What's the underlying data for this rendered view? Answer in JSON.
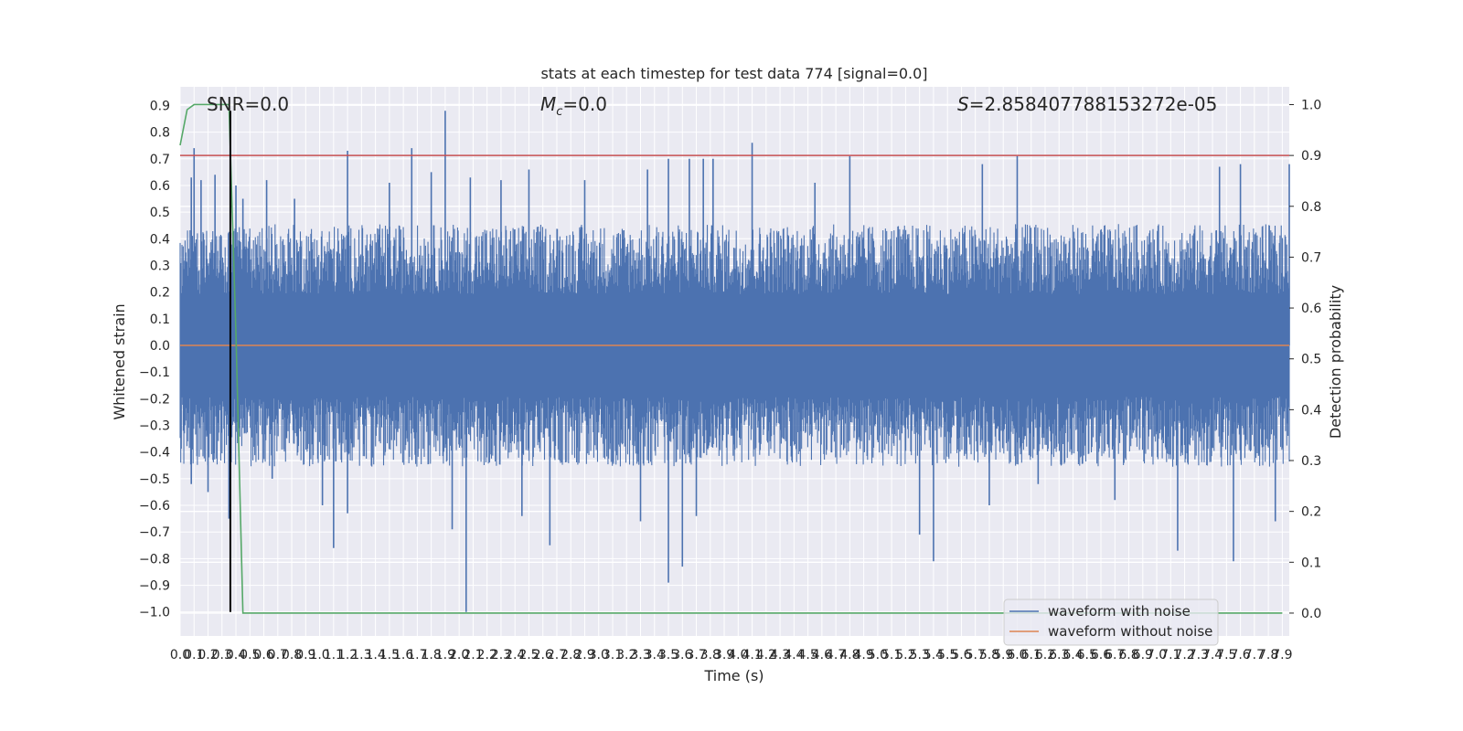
{
  "chart_data": {
    "type": "line",
    "title": "stats at each timestep for test data 774 [signal=0.0]",
    "xlabel": "Time (s)",
    "ylabel_left": "Whitened strain",
    "ylabel_right": "Detection probability",
    "xlim": [
      0.0,
      7.95
    ],
    "ylim_left": [
      -1.09,
      0.97
    ],
    "ylim_right": [
      -0.045,
      1.035
    ],
    "x_ticks": [
      "0.0",
      "0.1",
      "0.2",
      "0.3",
      "0.4",
      "0.5",
      "0.6",
      "0.7",
      "0.8",
      "0.9",
      "1.0",
      "1.1",
      "1.2",
      "1.3",
      "1.4",
      "1.5",
      "1.6",
      "1.7",
      "1.8",
      "1.9",
      "2.0",
      "2.1",
      "2.2",
      "2.3",
      "2.4",
      "2.5",
      "2.6",
      "2.7",
      "2.8",
      "2.9",
      "3.0",
      "3.1",
      "3.2",
      "3.3",
      "3.4",
      "3.5",
      "3.6",
      "3.7",
      "3.8",
      "3.9",
      "4.0",
      "4.1",
      "4.2",
      "4.3",
      "4.4",
      "4.5",
      "4.6",
      "4.7",
      "4.8",
      "4.9",
      "5.0",
      "5.1",
      "5.2",
      "5.3",
      "5.4",
      "5.5",
      "5.6",
      "5.7",
      "5.8",
      "5.9",
      "6.0",
      "6.1",
      "6.2",
      "6.3",
      "6.4",
      "6.5",
      "6.6",
      "6.7",
      "6.8",
      "6.9",
      "7.0",
      "7.1",
      "7.2",
      "7.3",
      "7.4",
      "7.5",
      "7.6",
      "7.7",
      "7.8",
      "7.9"
    ],
    "y_ticks_left": [
      "0.9",
      "0.8",
      "0.7",
      "0.6",
      "0.5",
      "0.4",
      "0.3",
      "0.2",
      "0.1",
      "0.0",
      "−0.1",
      "−0.2",
      "−0.3",
      "−0.4",
      "−0.5",
      "−0.6",
      "−0.7",
      "−0.8",
      "−0.9",
      "−1.0"
    ],
    "y_ticks_right": [
      "1.0",
      "0.9",
      "0.8",
      "0.7",
      "0.6",
      "0.5",
      "0.4",
      "0.3",
      "0.2",
      "0.1",
      "0.0"
    ],
    "annotations": {
      "snr": "SNR=0.0",
      "mc_symbol": "M",
      "mc_sub": "c",
      "mc_value": "=0.0",
      "s_symbol": "S",
      "s_value": "=2.858407788153272e-05"
    },
    "legend": {
      "placement": "lower right",
      "entries": [
        {
          "label": "waveform with noise",
          "color": "#4c72b0"
        },
        {
          "label": "waveform without noise",
          "color": "#dd8452"
        }
      ]
    },
    "series": [
      {
        "name": "waveform with noise",
        "axis": "left",
        "color": "#4c72b0",
        "style": "noise",
        "envelope_typical": 0.35,
        "spikes": [
          {
            "x": 0.08,
            "y": 0.63
          },
          {
            "x": 0.08,
            "y": -0.52
          },
          {
            "x": 0.1,
            "y": 0.74
          },
          {
            "x": 0.15,
            "y": 0.62
          },
          {
            "x": 0.2,
            "y": -0.55
          },
          {
            "x": 0.25,
            "y": 0.64
          },
          {
            "x": 0.35,
            "y": -0.65
          },
          {
            "x": 0.4,
            "y": 0.6
          },
          {
            "x": 0.45,
            "y": 0.55
          },
          {
            "x": 0.62,
            "y": 0.62
          },
          {
            "x": 0.66,
            "y": -0.5
          },
          {
            "x": 0.82,
            "y": 0.55
          },
          {
            "x": 1.02,
            "y": -0.6
          },
          {
            "x": 1.1,
            "y": -0.76
          },
          {
            "x": 1.2,
            "y": 0.73
          },
          {
            "x": 1.2,
            "y": -0.63
          },
          {
            "x": 1.5,
            "y": 0.61
          },
          {
            "x": 1.66,
            "y": 0.74
          },
          {
            "x": 1.8,
            "y": 0.65
          },
          {
            "x": 1.9,
            "y": 0.88
          },
          {
            "x": 1.95,
            "y": -0.69
          },
          {
            "x": 2.05,
            "y": -1.0
          },
          {
            "x": 2.08,
            "y": 0.63
          },
          {
            "x": 2.3,
            "y": 0.62
          },
          {
            "x": 2.45,
            "y": -0.64
          },
          {
            "x": 2.5,
            "y": 0.66
          },
          {
            "x": 2.65,
            "y": -0.75
          },
          {
            "x": 2.9,
            "y": 0.62
          },
          {
            "x": 3.3,
            "y": -0.66
          },
          {
            "x": 3.35,
            "y": 0.66
          },
          {
            "x": 3.5,
            "y": 0.7
          },
          {
            "x": 3.5,
            "y": -0.89
          },
          {
            "x": 3.6,
            "y": -0.83
          },
          {
            "x": 3.65,
            "y": 0.7
          },
          {
            "x": 3.7,
            "y": -0.64
          },
          {
            "x": 3.75,
            "y": 0.7
          },
          {
            "x": 3.82,
            "y": 0.7
          },
          {
            "x": 4.1,
            "y": 0.76
          },
          {
            "x": 4.55,
            "y": 0.61
          },
          {
            "x": 4.8,
            "y": 0.71
          },
          {
            "x": 5.3,
            "y": -0.71
          },
          {
            "x": 5.4,
            "y": -0.81
          },
          {
            "x": 5.75,
            "y": 0.68
          },
          {
            "x": 5.8,
            "y": -0.6
          },
          {
            "x": 6.0,
            "y": 0.71
          },
          {
            "x": 6.15,
            "y": -0.52
          },
          {
            "x": 6.7,
            "y": -0.58
          },
          {
            "x": 7.15,
            "y": -0.77
          },
          {
            "x": 7.45,
            "y": 0.67
          },
          {
            "x": 7.55,
            "y": -0.81
          },
          {
            "x": 7.6,
            "y": 0.68
          },
          {
            "x": 7.85,
            "y": -0.66
          },
          {
            "x": 7.95,
            "y": 0.68
          }
        ]
      },
      {
        "name": "waveform without noise",
        "axis": "left",
        "color": "#dd8452",
        "x": [
          0.0,
          7.95
        ],
        "y": [
          0.0,
          0.0
        ]
      },
      {
        "name": "",
        "axis": "right",
        "color": "#55a868",
        "x": [
          0.0,
          0.05,
          0.1,
          0.15,
          0.2,
          0.25,
          0.3,
          0.35,
          0.4,
          0.45,
          0.5,
          7.9
        ],
        "y": [
          0.92,
          0.99,
          1.0,
          1.0,
          1.0,
          1.0,
          1.0,
          1.0,
          0.55,
          0.0,
          0.0,
          0.0
        ]
      },
      {
        "name": "",
        "axis": "right",
        "color": "#c44e52",
        "x": [
          0.0,
          7.95
        ],
        "y": [
          0.9,
          0.9
        ]
      },
      {
        "name": "",
        "axis": "left",
        "color": "#000000",
        "style": "vertical",
        "x": [
          0.36,
          0.36
        ],
        "y": [
          -1.0,
          0.88
        ]
      }
    ],
    "grid": true
  }
}
